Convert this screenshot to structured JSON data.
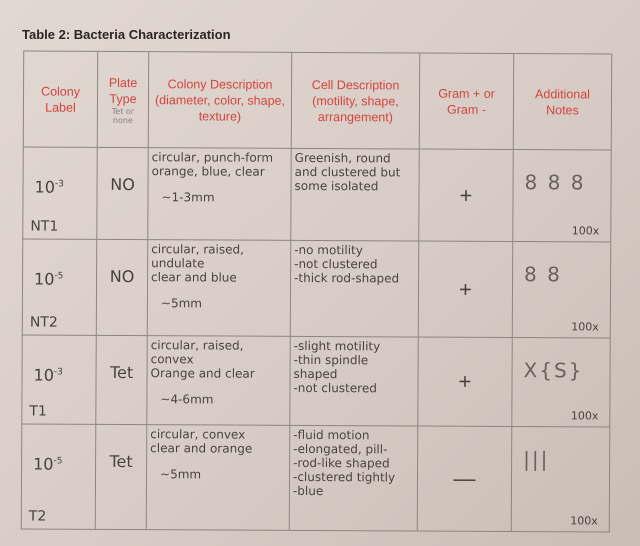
{
  "title": "Table 2: Bacteria Characterization",
  "headers": {
    "colony_label": "Colony Label",
    "plate_type": "Plate Type",
    "plate_type_note": "Tet or none",
    "colony_description": "Colony Description (diameter, color, shape, texture)",
    "cell_description": "Cell Description (motility, shape, arrangement)",
    "gram": "Gram + or Gram -",
    "notes": "Additional Notes"
  },
  "rows": [
    {
      "dilution_base": "10",
      "dilution_exp": "-3",
      "code": "NT1",
      "plate": "NO",
      "colony": [
        "circular, punch-form",
        "orange, blue, clear",
        "~1-3mm"
      ],
      "cell": [
        "Greenish, round and clustered but some isolated"
      ],
      "gram": "+",
      "sketch": "8 8 8",
      "magnification": "100x"
    },
    {
      "dilution_base": "10",
      "dilution_exp": "-5",
      "code": "NT2",
      "plate": "NO",
      "colony": [
        "circular, raised, undulate",
        "clear and blue",
        "~5mm"
      ],
      "cell": [
        "-no motility",
        "-not clustered",
        "-thick rod-shaped"
      ],
      "gram": "+",
      "sketch": "8      8",
      "magnification": "100x"
    },
    {
      "dilution_base": "10",
      "dilution_exp": "-3",
      "code": "T1",
      "plate": "Tet",
      "colony": [
        "circular, raised, convex",
        "Orange and clear",
        "~4-6mm"
      ],
      "cell": [
        "-slight motility",
        "-thin spindle shaped",
        "-not clustered"
      ],
      "gram": "+",
      "sketch": "X{S}",
      "magnification": "100x"
    },
    {
      "dilution_base": "10",
      "dilution_exp": "-5",
      "code": "T2",
      "plate": "Tet",
      "colony": [
        "circular, convex",
        "clear and orange",
        "~5mm"
      ],
      "cell": [
        "-fluid motion",
        "-elongated, pill-",
        "-rod-like shaped",
        "-clustered tightly",
        "-blue"
      ],
      "gram": "—",
      "sketch": "|||",
      "magnification": "100x"
    }
  ]
}
